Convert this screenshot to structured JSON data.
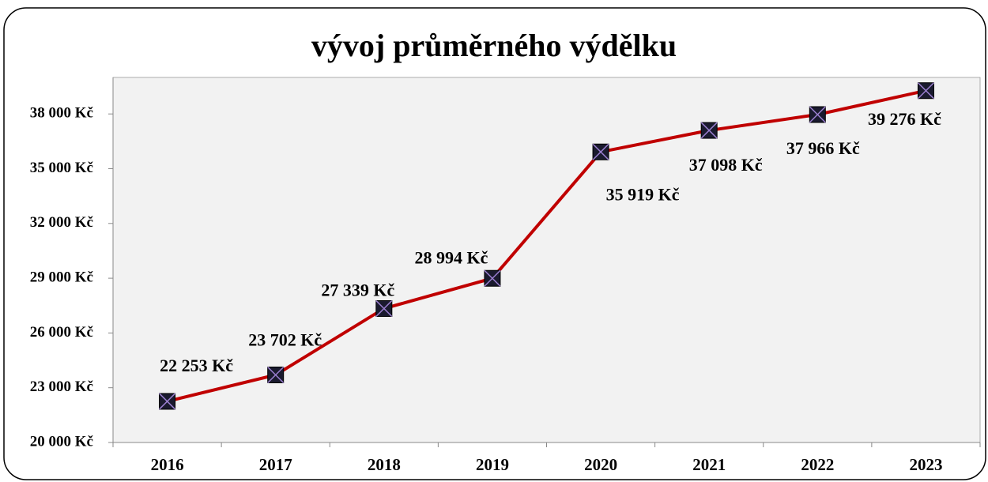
{
  "chart_data": {
    "type": "line",
    "title": "vývoj průměrného výdělku",
    "categories": [
      "2016",
      "2017",
      "2018",
      "2019",
      "2020",
      "2021",
      "2022",
      "2023"
    ],
    "series": [
      {
        "color": "#c00000",
        "values": [
          22253,
          23702,
          27339,
          28994,
          35919,
          37098,
          37966,
          39276
        ],
        "value_labels": [
          "22 253 Kč",
          "23 702 Kč",
          "27 339 Kč",
          "28 994 Kč",
          "35 919 Kč",
          "37 098 Kč",
          "37 966 Kč",
          "39 276 Kč"
        ]
      }
    ],
    "ylim": [
      20000,
      40000
    ],
    "yticks": [
      {
        "value": 20000,
        "label": "20 000 Kč"
      },
      {
        "value": 23000,
        "label": "23 000 Kč"
      },
      {
        "value": 26000,
        "label": "26 000 Kč"
      },
      {
        "value": 29000,
        "label": "29 000 Kč"
      },
      {
        "value": 32000,
        "label": "32 000 Kč"
      },
      {
        "value": 35000,
        "label": "35 000 Kč"
      },
      {
        "value": 38000,
        "label": "38 000 Kč"
      }
    ],
    "grid": false
  }
}
